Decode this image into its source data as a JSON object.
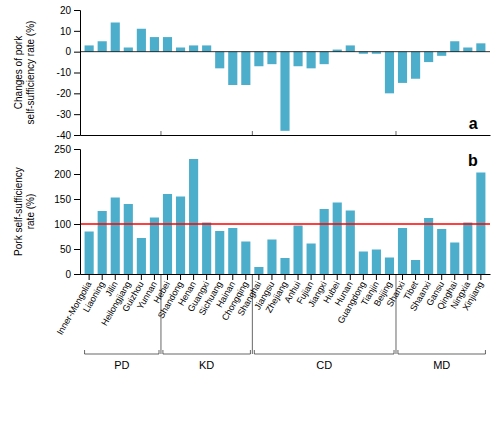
{
  "chart_data": [
    {
      "type": "bar",
      "categories": [
        "Inner-Mongolia",
        "Liaoning",
        "Jilin",
        "Heilongjiang",
        "Guizhou",
        "Yunnan",
        "Hebei",
        "Shandong",
        "Henan",
        "Guangxi",
        "Sichuang",
        "Hainan",
        "Chongqing",
        "Shanghai",
        "Jiangsu",
        "Zhejiang",
        "Anhui",
        "Fujian",
        "Jiangxi",
        "Hubei",
        "Hunan",
        "Guangdong",
        "Tianjin",
        "Beijing",
        "Shanxi",
        "Tibet",
        "Shaanxi",
        "Gansu",
        "Qinghai",
        "Ningxia",
        "Xinjiang"
      ],
      "values": [
        3,
        5,
        14,
        2,
        11,
        7,
        7,
        2,
        3,
        3,
        -8,
        -16,
        -16,
        -7,
        -6,
        -38,
        -7,
        -8,
        -6,
        1,
        3,
        -1,
        -1,
        -20,
        -15,
        -13,
        -5,
        -2,
        5,
        2,
        4
      ],
      "color": "#4DAECC",
      "ylabel": "Changes of pork\nself-sufficiency rate (%)",
      "ylim": [
        -40,
        20
      ],
      "yticks": [
        -40,
        -30,
        -20,
        -10,
        0,
        10,
        20
      ],
      "tick_labels": "y",
      "annotations": [
        "a"
      ]
    },
    {
      "type": "bar",
      "categories": [
        "Inner-Mongolia",
        "Liaoning",
        "Jilin",
        "Heilongjiang",
        "Guizhou",
        "Yunnan",
        "Hebei",
        "Shandong",
        "Henan",
        "Guangxi",
        "Sichuang",
        "Hainan",
        "Chongqing",
        "Shanghai",
        "Jiangsu",
        "Zhejiang",
        "Anhui",
        "Fujian",
        "Jiangxi",
        "Hubei",
        "Hunan",
        "Guangdong",
        "Tianjin",
        "Beijing",
        "Shanxi",
        "Tibet",
        "Shaanxi",
        "Gansu",
        "Qinghai",
        "Ningxia",
        "Xinjiang"
      ],
      "values": [
        85,
        126,
        153,
        140,
        72,
        113,
        160,
        155,
        230,
        103,
        86,
        92,
        65,
        14,
        69,
        32,
        97,
        61,
        130,
        143,
        127,
        45,
        49,
        33,
        92,
        28,
        112,
        90,
        63,
        103,
        203
      ],
      "color": "#4DAECC",
      "ylabel": "Pork self-sufficiency\nrate (%)",
      "ylim": [
        0,
        250
      ],
      "yticks": [
        0,
        50,
        100,
        150,
        200,
        250
      ],
      "reference_line": {
        "value": 100,
        "color": "red"
      },
      "groups": [
        {
          "name": "PD",
          "start": 0,
          "end": 5
        },
        {
          "name": "KD",
          "start": 6,
          "end": 12
        },
        {
          "name": "CD",
          "start": 13,
          "end": 23
        },
        {
          "name": "MD",
          "start": 24,
          "end": 30
        }
      ],
      "annotations": [
        "b"
      ]
    }
  ]
}
